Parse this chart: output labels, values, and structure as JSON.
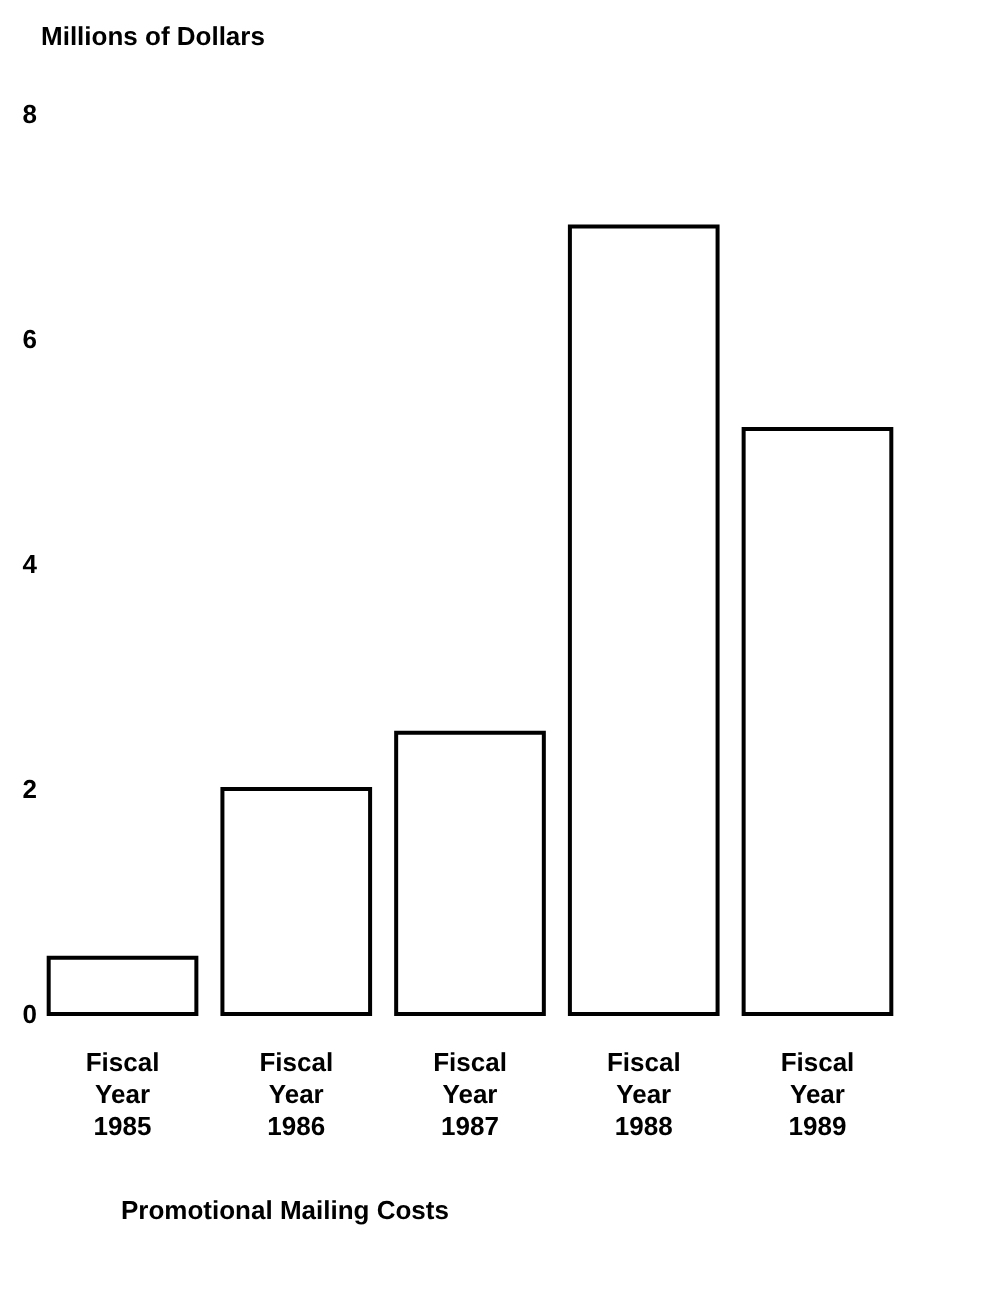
{
  "chart_data": {
    "type": "bar",
    "ylabel": "Millions of Dollars",
    "xlabel": "Promotional Mailing Costs",
    "categories": [
      "Fiscal Year 1985",
      "Fiscal Year 1986",
      "Fiscal Year 1987",
      "Fiscal Year 1988",
      "Fiscal Year 1989"
    ],
    "values": [
      0.5,
      2,
      2.5,
      7,
      5.2
    ],
    "color": "#ffffff",
    "ylim": [
      0,
      8
    ],
    "yticks": [
      0,
      2,
      4,
      6,
      8
    ],
    "grid": false
  }
}
